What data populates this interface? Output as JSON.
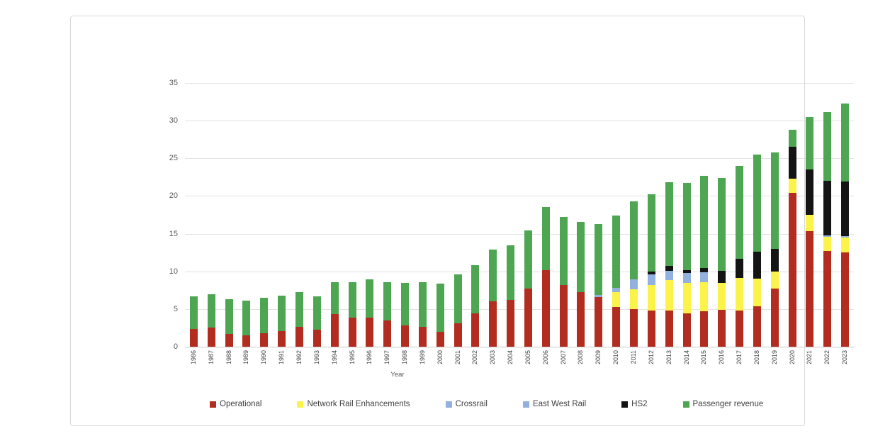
{
  "chart_data": {
    "type": "bar",
    "stacked": true,
    "title": "",
    "xlabel": "Year",
    "ylabel": "",
    "ylim": [
      0,
      35
    ],
    "yticks": [
      0,
      5,
      10,
      15,
      20,
      25,
      30,
      35
    ],
    "grid": true,
    "legend_position": "bottom",
    "categories": [
      "1986",
      "1987",
      "1988",
      "1989",
      "1990",
      "1991",
      "1992",
      "1993",
      "1994",
      "1995",
      "1996",
      "1997",
      "1998",
      "1999",
      "2000",
      "2001",
      "2002",
      "2003",
      "2004",
      "2005",
      "2006",
      "2007",
      "2008",
      "2009",
      "2010",
      "2011",
      "2012",
      "2013",
      "2014",
      "2015",
      "2016",
      "2017",
      "2018",
      "2019",
      "2020",
      "2021",
      "2022",
      "2023"
    ],
    "series": [
      {
        "name": "Operational",
        "color": "#b22c1f",
        "values": [
          2.4,
          2.5,
          1.7,
          1.5,
          1.8,
          2.1,
          2.6,
          2.3,
          4.3,
          3.9,
          3.9,
          3.5,
          2.8,
          2.6,
          2.0,
          3.1,
          4.4,
          6.0,
          6.2,
          7.7,
          10.2,
          8.2,
          7.2,
          6.6,
          5.3,
          5.0,
          4.8,
          4.8,
          4.4,
          4.7,
          4.9,
          4.8,
          5.4,
          7.7,
          20.4,
          15.3,
          12.7,
          12.5
        ]
      },
      {
        "name": "Network Rail Enhancements",
        "color": "#fbf34a",
        "values": [
          0,
          0,
          0,
          0,
          0,
          0,
          0,
          0,
          0,
          0,
          0,
          0,
          0,
          0,
          0,
          0,
          0,
          0,
          0,
          0,
          0,
          0,
          0,
          0,
          1.9,
          2.6,
          3.4,
          4.0,
          4.1,
          3.9,
          3.6,
          4.3,
          3.6,
          2.3,
          1.9,
          2.2,
          1.9,
          2.0
        ]
      },
      {
        "name": "Crossrail",
        "color": "#93b1de",
        "values": [
          0,
          0,
          0,
          0,
          0,
          0,
          0,
          0,
          0,
          0,
          0,
          0,
          0,
          0,
          0,
          0,
          0,
          0,
          0,
          0,
          0,
          0,
          0,
          0.3,
          0.6,
          1.3,
          1.4,
          1.3,
          1.3,
          1.3,
          0,
          0,
          0,
          0,
          0,
          0,
          0,
          0
        ]
      },
      {
        "name": "East West Rail",
        "color": "#93b1de",
        "values": [
          0,
          0,
          0,
          0,
          0,
          0,
          0,
          0,
          0,
          0,
          0,
          0,
          0,
          0,
          0,
          0,
          0,
          0,
          0,
          0,
          0,
          0,
          0,
          0,
          0,
          0,
          0,
          0,
          0,
          0,
          0,
          0,
          0,
          0,
          0,
          0,
          0.2,
          0.2
        ]
      },
      {
        "name": "HS2",
        "color": "#141414",
        "values": [
          0,
          0,
          0,
          0,
          0,
          0,
          0,
          0,
          0,
          0,
          0,
          0,
          0,
          0,
          0,
          0,
          0,
          0,
          0,
          0,
          0,
          0,
          0,
          0,
          0,
          0,
          0.4,
          0.6,
          0.4,
          0.5,
          1.6,
          2.6,
          3.6,
          3.0,
          4.2,
          6.0,
          7.2,
          7.2
        ]
      },
      {
        "name": "Passenger revenue",
        "color": "#4ea652",
        "values": [
          4.3,
          4.5,
          4.6,
          4.6,
          4.7,
          4.7,
          4.6,
          4.4,
          4.3,
          4.7,
          5.0,
          5.1,
          5.7,
          6.0,
          6.4,
          6.5,
          6.4,
          6.9,
          7.3,
          7.7,
          8.3,
          9.0,
          9.4,
          9.4,
          9.6,
          10.4,
          10.2,
          11.1,
          11.5,
          12.3,
          12.3,
          12.3,
          12.9,
          12.8,
          2.3,
          7.0,
          9.1,
          10.4
        ]
      }
    ]
  }
}
